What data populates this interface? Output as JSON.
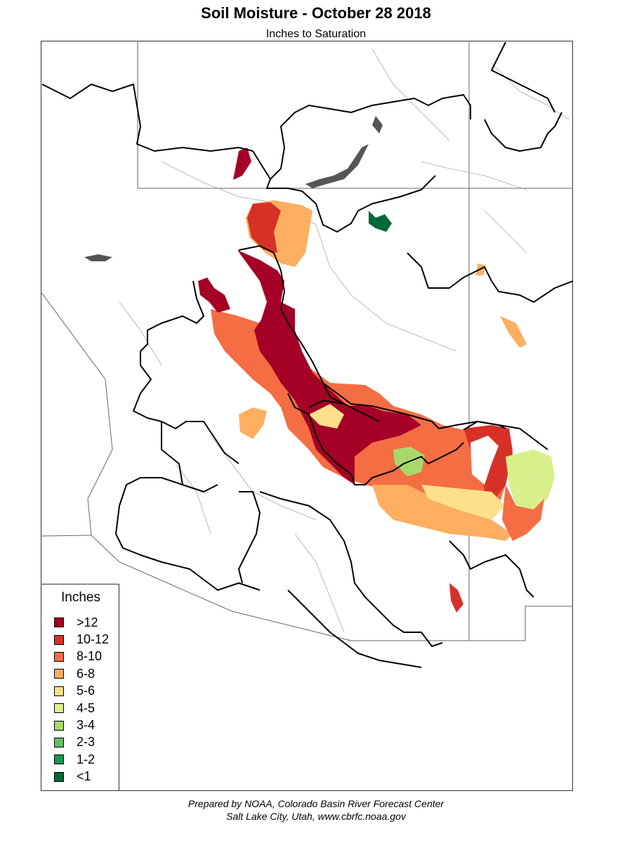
{
  "title": "Soil Moisture - October 28 2018",
  "subtitle": "Inches to Saturation",
  "legend": {
    "title": "Inches",
    "items": [
      {
        "label": ">12",
        "color": "#a50026"
      },
      {
        "label": "10-12",
        "color": "#d73027"
      },
      {
        "label": "8-10",
        "color": "#f46d43"
      },
      {
        "label": "6-8",
        "color": "#fdae61"
      },
      {
        "label": "5-6",
        "color": "#fee08b"
      },
      {
        "label": "4-5",
        "color": "#d9ef8b"
      },
      {
        "label": "3-4",
        "color": "#a6d96a"
      },
      {
        "label": "2-3",
        "color": "#66bd63"
      },
      {
        "label": "1-2",
        "color": "#1a9850"
      },
      {
        "label": "<1",
        "color": "#006837"
      }
    ]
  },
  "credit": {
    "line1": "Prepared by NOAA, Colorado Basin River Forecast Center",
    "line2": "Salt Lake City, Utah, www.cbrfc.noaa.gov"
  }
}
